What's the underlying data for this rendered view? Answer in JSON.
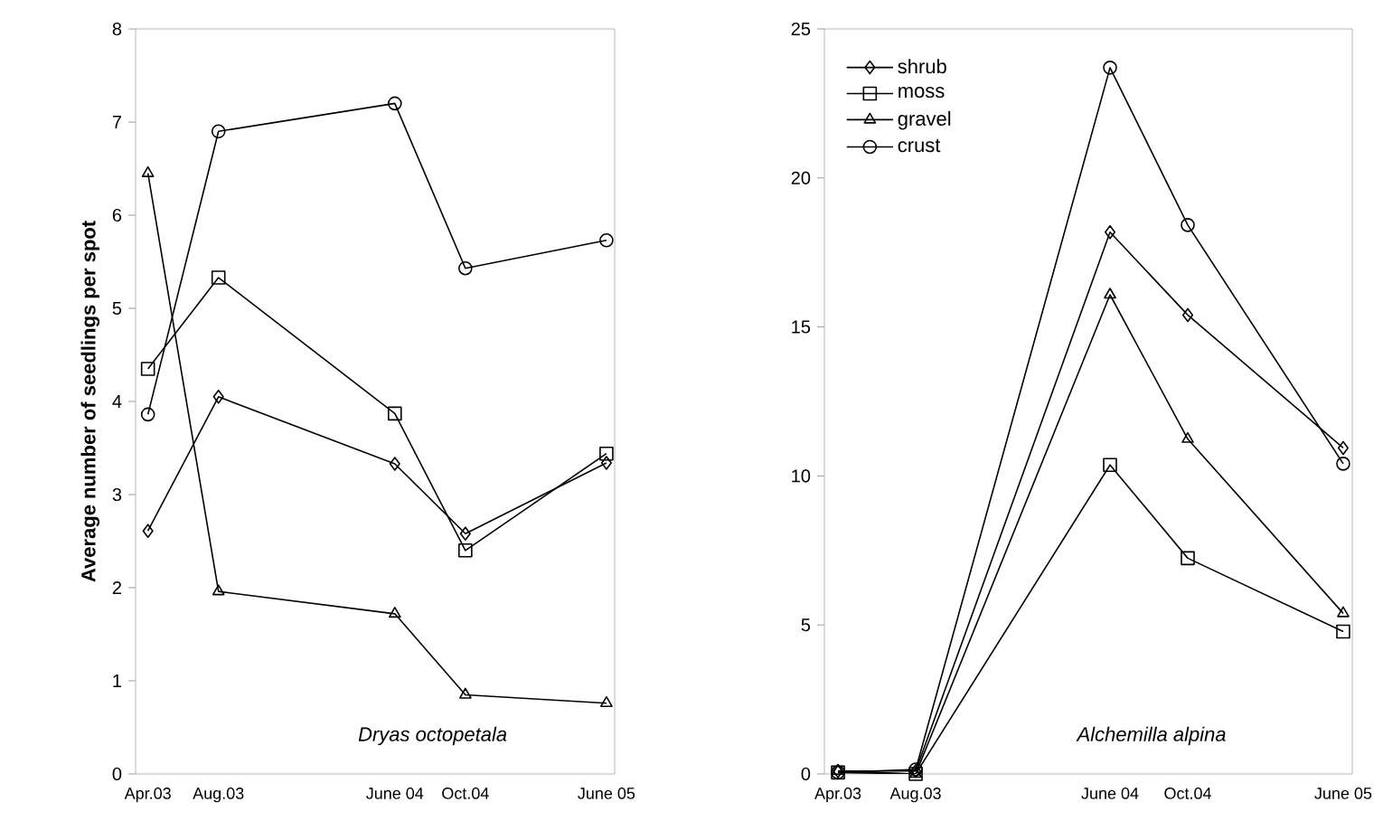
{
  "chart_data": [
    {
      "type": "line",
      "ylabel": "Average number of seedlings per spot",
      "annotations": [
        "Dryas octopetala"
      ],
      "x": [
        "2003-04",
        "2003-08",
        "2004-06",
        "2004-10",
        "2005-06"
      ],
      "xlim": [
        "2003-03-10",
        "2005-06-15"
      ],
      "xticks": [
        {
          "value": "2003-04",
          "label": "Apr.03"
        },
        {
          "value": "2003-08",
          "label": "Aug.03"
        },
        {
          "value": "2004-06",
          "label": "June 04"
        },
        {
          "value": "2004-10",
          "label": "Oct.04"
        },
        {
          "value": "2005-06",
          "label": "June 05"
        }
      ],
      "ylim": [
        0,
        8
      ],
      "yticks": [
        0,
        1,
        2,
        3,
        4,
        5,
        6,
        7,
        8
      ],
      "legend": false,
      "line_style": "solid",
      "series": [
        {
          "color": "#000000",
          "marker": "diamond",
          "values": [
            2.61,
            4.05,
            3.33,
            2.58,
            3.34
          ]
        },
        {
          "color": "#000000",
          "marker": "square",
          "values": [
            4.35,
            5.33,
            3.87,
            2.4,
            3.44
          ]
        },
        {
          "color": "#000000",
          "marker": "triangle",
          "values": [
            6.45,
            1.96,
            1.72,
            0.85,
            0.76
          ]
        },
        {
          "color": "#000000",
          "marker": "circle",
          "values": [
            3.86,
            6.9,
            7.2,
            5.43,
            5.73
          ]
        }
      ]
    },
    {
      "type": "line",
      "annotations": [
        "Alchemilla alpina"
      ],
      "x": [
        "2003-04",
        "2003-08",
        "2004-06",
        "2004-10",
        "2005-06"
      ],
      "xlim": [
        "2003-03-10",
        "2005-06-15"
      ],
      "xticks": [
        {
          "value": "2003-04",
          "label": "Apr.03"
        },
        {
          "value": "2003-08",
          "label": "Aug.03"
        },
        {
          "value": "2004-06",
          "label": "June 04"
        },
        {
          "value": "2004-10",
          "label": "Oct.04"
        },
        {
          "value": "2005-06",
          "label": "June 05"
        }
      ],
      "ylim": [
        0,
        25
      ],
      "yticks": [
        0,
        5,
        10,
        15,
        20,
        25
      ],
      "legend": "top left",
      "line_style": "solid",
      "series": [
        {
          "name": "shrub",
          "color": "#000000",
          "marker": "diamond",
          "values": [
            0.1,
            0.1,
            18.18,
            15.4,
            10.94
          ]
        },
        {
          "name": "moss",
          "color": "#000000",
          "marker": "square",
          "values": [
            0.05,
            0.0,
            10.37,
            7.24,
            4.78
          ]
        },
        {
          "name": "gravel",
          "color": "#000000",
          "marker": "triangle",
          "values": [
            0.1,
            0.0,
            16.08,
            11.24,
            5.39
          ]
        },
        {
          "name": "crust",
          "color": "#000000",
          "marker": "circle",
          "values": [
            0.05,
            0.15,
            23.7,
            18.42,
            10.41
          ]
        }
      ]
    }
  ]
}
